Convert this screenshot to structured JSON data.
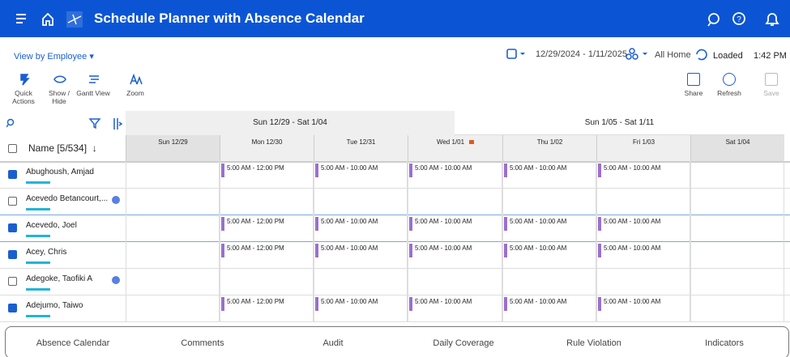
{
  "header": {
    "title": "Schedule Planner with Absence Calendar"
  },
  "toolbar": {
    "view_by": "View by Employee",
    "date_range": "12/29/2024 - 1/11/2025",
    "location": "All Home",
    "status": "Loaded",
    "time": "1:42 PM"
  },
  "actions": [
    {
      "label": "Quick Actions"
    },
    {
      "label": "Show / Hide"
    },
    {
      "label": "Gantt View"
    },
    {
      "label": "Zoom"
    }
  ],
  "right_actions": [
    {
      "label": "Share"
    },
    {
      "label": "Refresh"
    },
    {
      "label": "Save"
    }
  ],
  "grid": {
    "name_header": "Name [5/534]",
    "weeks": [
      "Sun 12/29 - Sat 1/04",
      "Sun 1/05 - Sat 1/11"
    ],
    "days": [
      {
        "label": "Sun 12/29",
        "weekend": true
      },
      {
        "label": "Mon 12/30"
      },
      {
        "label": "Tue 12/31"
      },
      {
        "label": "Wed 1/01",
        "holiday": true
      },
      {
        "label": "Thu 1/02"
      },
      {
        "label": "Fri 1/03"
      },
      {
        "label": "Sat 1/04",
        "weekend": true
      }
    ],
    "rows": [
      {
        "name": "Abughoush, Amjad",
        "checked": true,
        "shifts": [
          null,
          "5:00 AM - 12:00 PM",
          "5:00 AM - 10:00 AM",
          "5:00 AM - 10:00 AM",
          "5:00 AM - 10:00 AM",
          "5:00 AM - 10:00 AM",
          null
        ]
      },
      {
        "name": "Acevedo Betancourt,...",
        "checked": false,
        "info": true,
        "shifts": [
          null,
          null,
          null,
          null,
          null,
          null,
          null
        ]
      },
      {
        "name": "Acevedo, Joel",
        "checked": true,
        "shifts": [
          null,
          "5:00 AM - 12:00 PM",
          "5:00 AM - 10:00 AM",
          "5:00 AM - 10:00 AM",
          "5:00 AM - 10:00 AM",
          "5:00 AM - 10:00 AM",
          null
        ]
      },
      {
        "name": "Acey, Chris",
        "checked": true,
        "shifts": [
          null,
          "5:00 AM - 12:00 PM",
          "5:00 AM - 10:00 AM",
          "5:00 AM - 10:00 AM",
          "5:00 AM - 10:00 AM",
          "5:00 AM - 10:00 AM",
          null
        ]
      },
      {
        "name": "Adegoke, Taofiki A",
        "checked": false,
        "info": true,
        "shifts": [
          null,
          null,
          null,
          null,
          null,
          null,
          null
        ]
      },
      {
        "name": "Adejumo, Taiwo",
        "checked": true,
        "shifts": [
          null,
          "5:00 AM - 12:00 PM",
          "5:00 AM - 10:00 AM",
          "5:00 AM - 10:00 AM",
          "5:00 AM - 10:00 AM",
          "5:00 AM - 10:00 AM",
          null
        ]
      }
    ]
  },
  "tabs": [
    "Absence Calendar",
    "Comments",
    "Audit",
    "Daily Coverage",
    "Rule Violation",
    "Indicators"
  ]
}
